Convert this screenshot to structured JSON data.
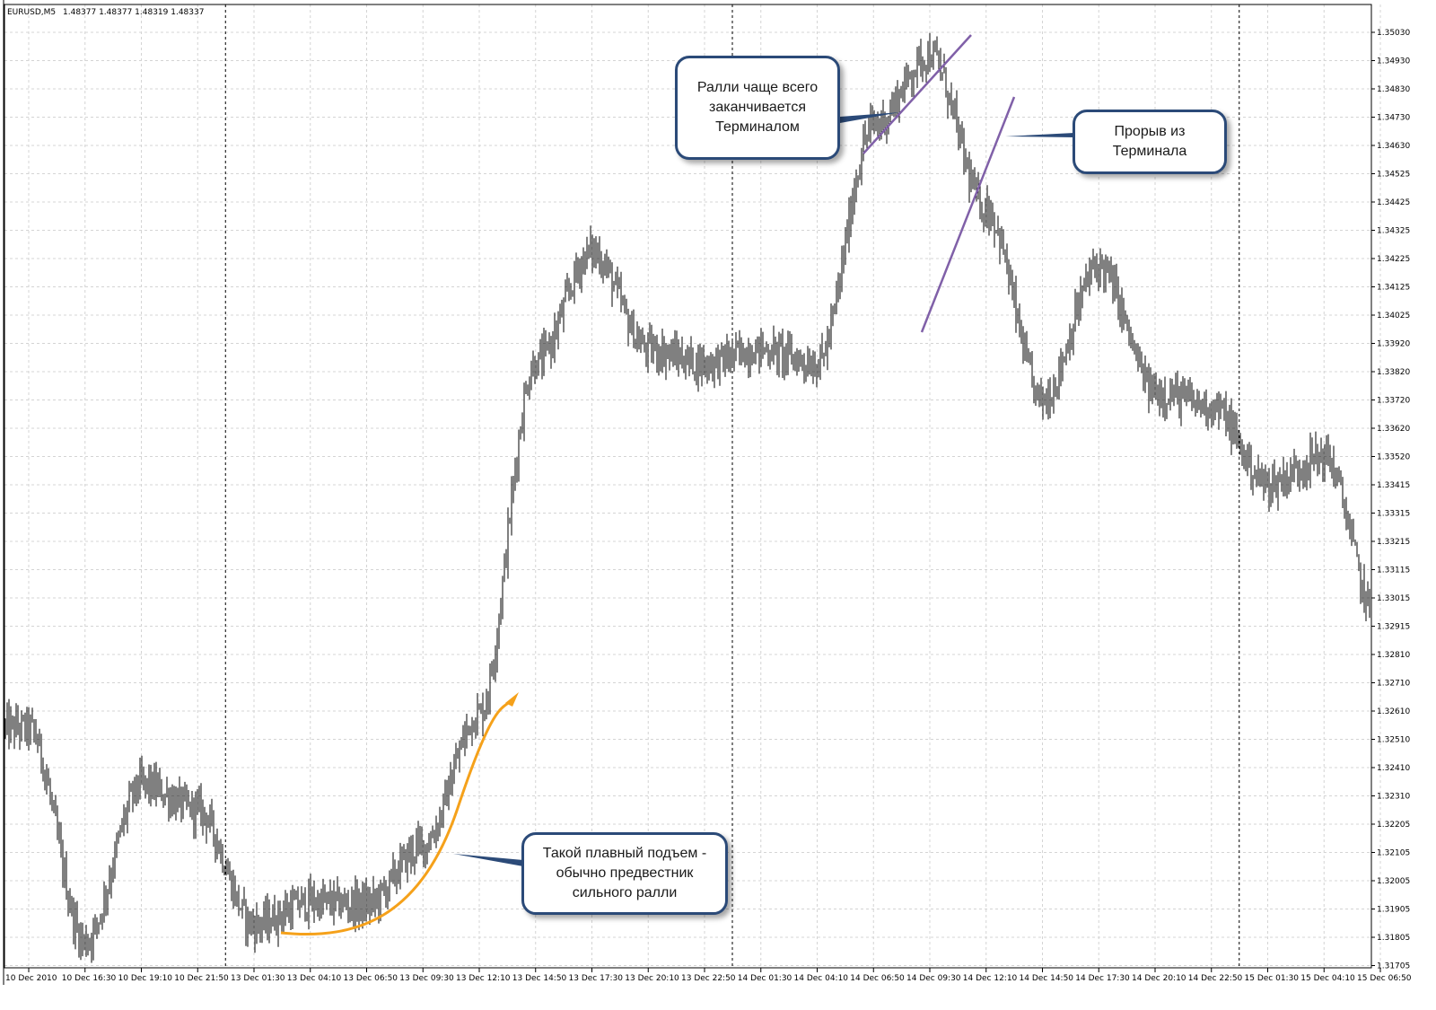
{
  "chart_header": {
    "symbol_label": "EURUSD,M5",
    "ohlc_readout": "1.48377 1.48377 1.48319 1.48337"
  },
  "colors": {
    "background": "#ffffff",
    "grid": "#d4d4d4",
    "price_bars": "#000000",
    "period_separators": "#000000",
    "trend_lines": "#8060a8",
    "rise_arrow": "#f5a11a",
    "callout_border": "#2b4a78"
  },
  "annotations": {
    "callout_top": "Ралли чаще всего\nзаканчивается\nТерминалом",
    "callout_breakout": "Прорыв из\nТерминала",
    "callout_bottom": "Такой плавный подъем -\nобычно предвестник\nсильного ралли"
  },
  "chart_data": {
    "type": "bar",
    "series_kind": "OHLC price bars (M5 timeframe)",
    "symbol": "EURUSD",
    "timeframe": "M5",
    "y_axis_ticks": [
      "1.35030",
      "1.34930",
      "1.34830",
      "1.34730",
      "1.34630",
      "1.34525",
      "1.34425",
      "1.34325",
      "1.34225",
      "1.34125",
      "1.34025",
      "1.33920",
      "1.33820",
      "1.33720",
      "1.33620",
      "1.33520",
      "1.33415",
      "1.33315",
      "1.33215",
      "1.33115",
      "1.33015",
      "1.32915",
      "1.32810",
      "1.32710",
      "1.32610",
      "1.32510",
      "1.32410",
      "1.32310",
      "1.32205",
      "1.32105",
      "1.32005",
      "1.31905",
      "1.31805",
      "1.31705"
    ],
    "x_axis_ticks": [
      "10 Dec 2010",
      "10 Dec 16:30",
      "10 Dec 19:10",
      "10 Dec 21:50",
      "13 Dec 01:30",
      "13 Dec 04:10",
      "13 Dec 06:50",
      "13 Dec 09:30",
      "13 Dec 12:10",
      "13 Dec 14:50",
      "13 Dec 17:30",
      "13 Dec 20:10",
      "13 Dec 22:50",
      "14 Dec 01:30",
      "14 Dec 04:10",
      "14 Dec 06:50",
      "14 Dec 09:30",
      "14 Dec 12:10",
      "14 Dec 14:50",
      "14 Dec 17:30",
      "14 Dec 20:10",
      "14 Dec 22:50",
      "15 Dec 01:30",
      "15 Dec 04:10",
      "15 Dec 06:50"
    ],
    "ylim": [
      1.31705,
      1.3508
    ],
    "period_separators_after": [
      "10 Dec 21:50",
      "13 Dec 22:50",
      "14 Dec 22:50"
    ],
    "price_path_keypoints": [
      {
        "t": "10 Dec 2010",
        "price": 1.3255
      },
      {
        "t": "10 Dec 16:30",
        "price": 1.3179
      },
      {
        "t": "10 Dec 19:10",
        "price": 1.3235
      },
      {
        "t": "10 Dec 21:50",
        "price": 1.3226
      },
      {
        "t": "13 Dec 01:30",
        "price": 1.3185
      },
      {
        "t": "13 Dec 04:10",
        "price": 1.3193
      },
      {
        "t": "13 Dec 06:50",
        "price": 1.3192
      },
      {
        "t": "13 Dec 09:30",
        "price": 1.3213
      },
      {
        "t": "13 Dec 12:10",
        "price": 1.326
      },
      {
        "t": "13 Dec 14:50",
        "price": 1.3385
      },
      {
        "t": "13 Dec 17:30",
        "price": 1.3425
      },
      {
        "t": "13 Dec 20:10",
        "price": 1.339
      },
      {
        "t": "13 Dec 22:50",
        "price": 1.3385
      },
      {
        "t": "14 Dec 01:30",
        "price": 1.339
      },
      {
        "t": "14 Dec 04:10",
        "price": 1.3385
      },
      {
        "t": "14 Dec 06:50",
        "price": 1.347
      },
      {
        "t": "14 Dec 09:30",
        "price": 1.3495
      },
      {
        "t": "14 Dec 12:10",
        "price": 1.344
      },
      {
        "t": "14 Dec 14:50",
        "price": 1.3372
      },
      {
        "t": "14 Dec 17:30",
        "price": 1.342
      },
      {
        "t": "14 Dec 20:10",
        "price": 1.3375
      },
      {
        "t": "14 Dec 22:50",
        "price": 1.337
      },
      {
        "t": "15 Dec 01:30",
        "price": 1.3342
      },
      {
        "t": "15 Dec 04:10",
        "price": 1.3352
      },
      {
        "t": "15 Dec 06:50",
        "price": 1.329
      }
    ],
    "grid": true,
    "legend": "none"
  }
}
